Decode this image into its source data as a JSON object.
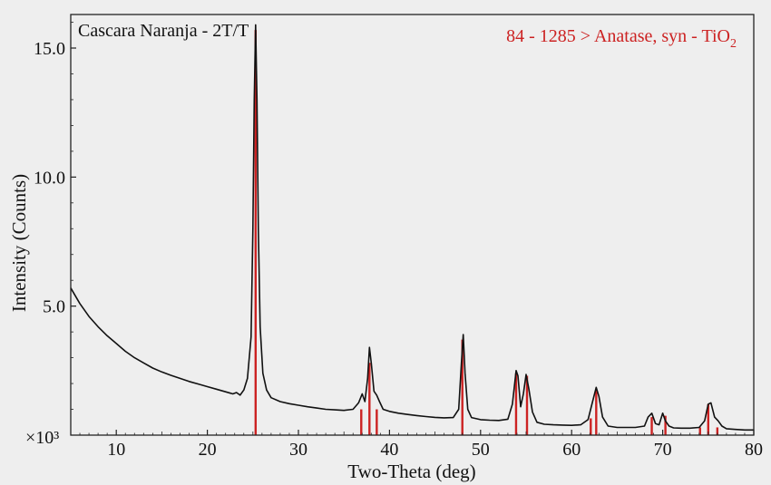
{
  "chart_data": {
    "type": "line",
    "sample_title": "Cascara Naranja - 2T/T",
    "reference_label": "84 - 1285 > Anatase, syn - TiO",
    "reference_label_subscript": "2",
    "xlabel": "Two-Theta (deg)",
    "ylabel": "Intensity (Counts)",
    "y_multiplier_label": "×10³",
    "xlim": [
      5,
      80
    ],
    "ylim": [
      0,
      16.3
    ],
    "x_ticks": [
      10,
      20,
      30,
      40,
      50,
      60,
      70,
      80
    ],
    "x_tick_labels": [
      "10",
      "20",
      "30",
      "40",
      "50",
      "60",
      "70",
      "80"
    ],
    "y_ticks": [
      5,
      10,
      15
    ],
    "y_tick_labels": [
      "5.0",
      "10.0",
      "15.0"
    ],
    "grid": false,
    "colors": {
      "pattern": "#111111",
      "reference": "#cc2222",
      "background": "#eeeeee",
      "axes": "#222222"
    },
    "series": [
      {
        "x": [
          5.0,
          6,
          7,
          8,
          9,
          10,
          11,
          12,
          13,
          14,
          15,
          16,
          17,
          18,
          19,
          20,
          21,
          22,
          22.8,
          23.2,
          23.6,
          24.0,
          24.4,
          24.8,
          25.0,
          25.15,
          25.3,
          25.45,
          25.6,
          25.8,
          26.1,
          26.5,
          27.0,
          28,
          29,
          30,
          31,
          32,
          33,
          34,
          35,
          36,
          36.6,
          37.0,
          37.3,
          37.6,
          37.8,
          38.0,
          38.3,
          38.6,
          38.9,
          39.3,
          40,
          41,
          42,
          43,
          44,
          45,
          46,
          47,
          47.6,
          47.9,
          48.1,
          48.3,
          48.6,
          49.0,
          50,
          51,
          52,
          53,
          53.5,
          53.9,
          54.1,
          54.4,
          54.7,
          55.0,
          55.3,
          55.7,
          56.2,
          57,
          58,
          59,
          60,
          61,
          61.8,
          62.3,
          62.7,
          63.0,
          63.4,
          64,
          65,
          66,
          67,
          68,
          68.4,
          68.8,
          69.2,
          69.6,
          70.0,
          70.3,
          70.7,
          71.2,
          72,
          73,
          74,
          74.6,
          75.0,
          75.3,
          75.7,
          76.1,
          76.5,
          77,
          78,
          79,
          80
        ],
        "y": [
          5.7,
          5.1,
          4.6,
          4.2,
          3.85,
          3.55,
          3.25,
          3.0,
          2.8,
          2.6,
          2.45,
          2.32,
          2.2,
          2.08,
          1.98,
          1.88,
          1.78,
          1.68,
          1.6,
          1.65,
          1.55,
          1.75,
          2.2,
          3.8,
          8.0,
          13.0,
          15.9,
          13.0,
          8.0,
          4.2,
          2.4,
          1.75,
          1.45,
          1.3,
          1.22,
          1.16,
          1.1,
          1.05,
          1.0,
          0.98,
          0.96,
          1.0,
          1.25,
          1.6,
          1.3,
          2.2,
          3.4,
          2.8,
          1.7,
          1.55,
          1.3,
          1.0,
          0.92,
          0.85,
          0.8,
          0.76,
          0.72,
          0.69,
          0.67,
          0.68,
          1.0,
          2.8,
          3.9,
          2.4,
          1.0,
          0.68,
          0.6,
          0.58,
          0.57,
          0.62,
          1.2,
          2.5,
          2.3,
          1.1,
          1.6,
          2.35,
          1.8,
          0.9,
          0.5,
          0.42,
          0.4,
          0.39,
          0.38,
          0.4,
          0.6,
          1.3,
          1.85,
          1.5,
          0.7,
          0.35,
          0.3,
          0.3,
          0.3,
          0.35,
          0.7,
          0.85,
          0.45,
          0.4,
          0.85,
          0.55,
          0.35,
          0.28,
          0.27,
          0.27,
          0.3,
          0.55,
          1.2,
          1.25,
          0.7,
          0.55,
          0.35,
          0.25,
          0.22,
          0.2,
          0.2
        ]
      }
    ],
    "reference_peaks": {
      "x": [
        25.3,
        36.9,
        37.8,
        38.6,
        48.0,
        53.9,
        55.1,
        62.1,
        62.7,
        68.8,
        70.3,
        74.1,
        75.0,
        76.0
      ],
      "y": [
        15.7,
        1.0,
        2.8,
        1.0,
        3.7,
        2.4,
        2.3,
        0.65,
        1.8,
        0.7,
        0.75,
        0.3,
        1.2,
        0.3
      ]
    }
  }
}
